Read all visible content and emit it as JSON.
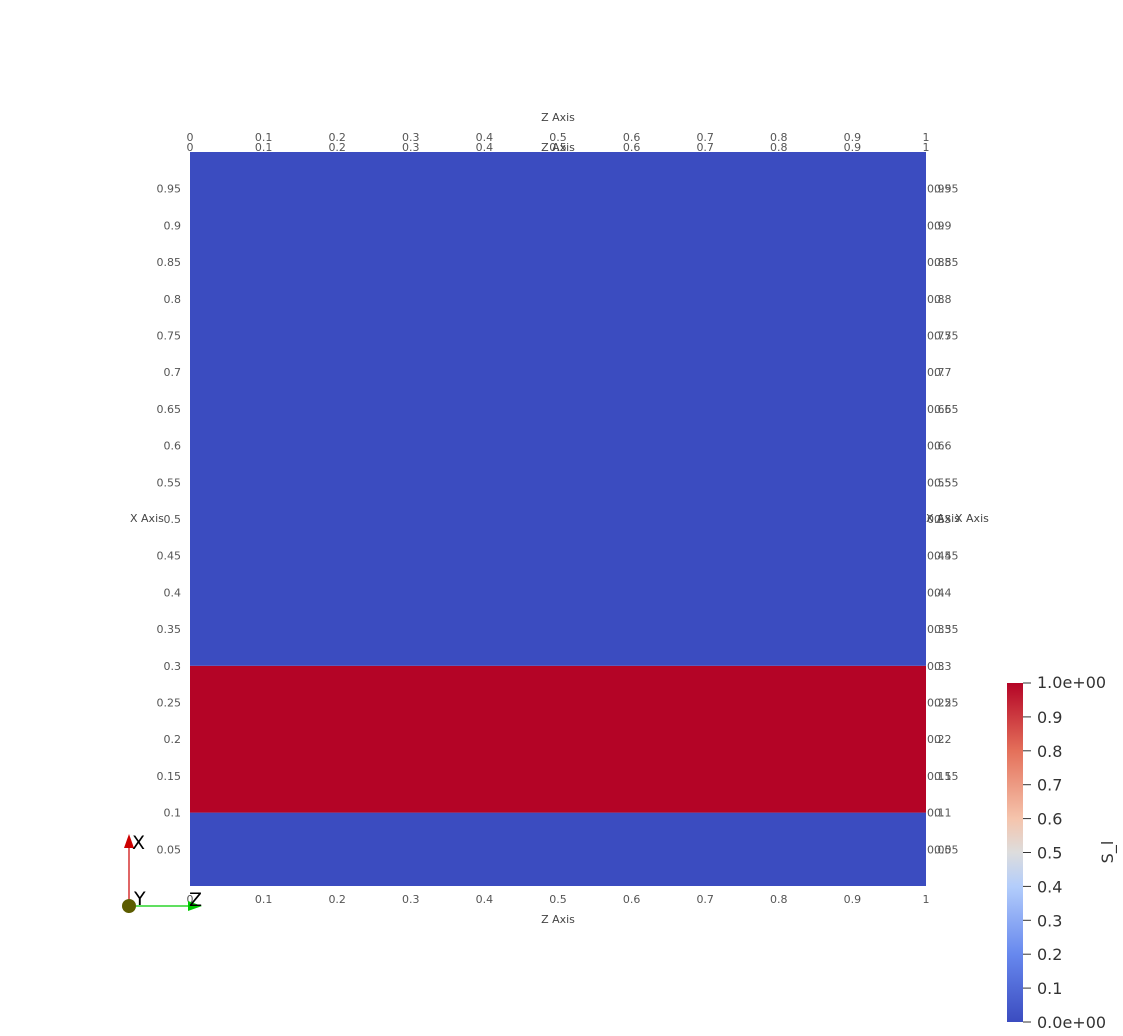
{
  "chart_data": {
    "type": "heatmap",
    "x_axis_title": "Z Axis",
    "y_axis_title": "X Axis",
    "xlim": [
      0,
      1
    ],
    "ylim": [
      0,
      1
    ],
    "x_ticks": [
      "0",
      "0.1",
      "0.2",
      "0.3",
      "0.4",
      "0.5",
      "0.6",
      "0.7",
      "0.8",
      "0.9",
      "1"
    ],
    "y_ticks": [
      "0.05",
      "0.1",
      "0.15",
      "0.2",
      "0.25",
      "0.3",
      "0.35",
      "0.4",
      "0.45",
      "0.5",
      "0.55",
      "0.6",
      "0.65",
      "0.7",
      "0.75",
      "0.8",
      "0.85",
      "0.9",
      "0.95"
    ],
    "regions": [
      {
        "y_from": 0.0,
        "y_to": 0.1,
        "value": 0
      },
      {
        "y_from": 0.1,
        "y_to": 0.3,
        "value": 1
      },
      {
        "y_from": 0.3,
        "y_to": 1.0,
        "value": 0
      }
    ],
    "colorbar": {
      "title": "S_l",
      "range": [
        0,
        1
      ],
      "max_label": "1.0e+00",
      "min_label": "0.0e+00",
      "tick_labels": [
        "0.9",
        "0.8",
        "0.7",
        "0.6",
        "0.5",
        "0.4",
        "0.3",
        "0.2",
        "0.1"
      ],
      "tick_values": [
        0.9,
        0.8,
        0.7,
        0.6,
        0.5,
        0.4,
        0.3,
        0.2,
        0.1
      ],
      "colormap": "Cool to Warm",
      "low_color": "#3b4cc0",
      "mid_color": "#dddddd",
      "high_color": "#b40426"
    },
    "orientation_axes": {
      "x_label": "X",
      "y_label": "Y",
      "z_label": "Z",
      "x_color": "#cc0000",
      "y_color": "#5c5c00",
      "z_color": "#00cc00"
    }
  }
}
